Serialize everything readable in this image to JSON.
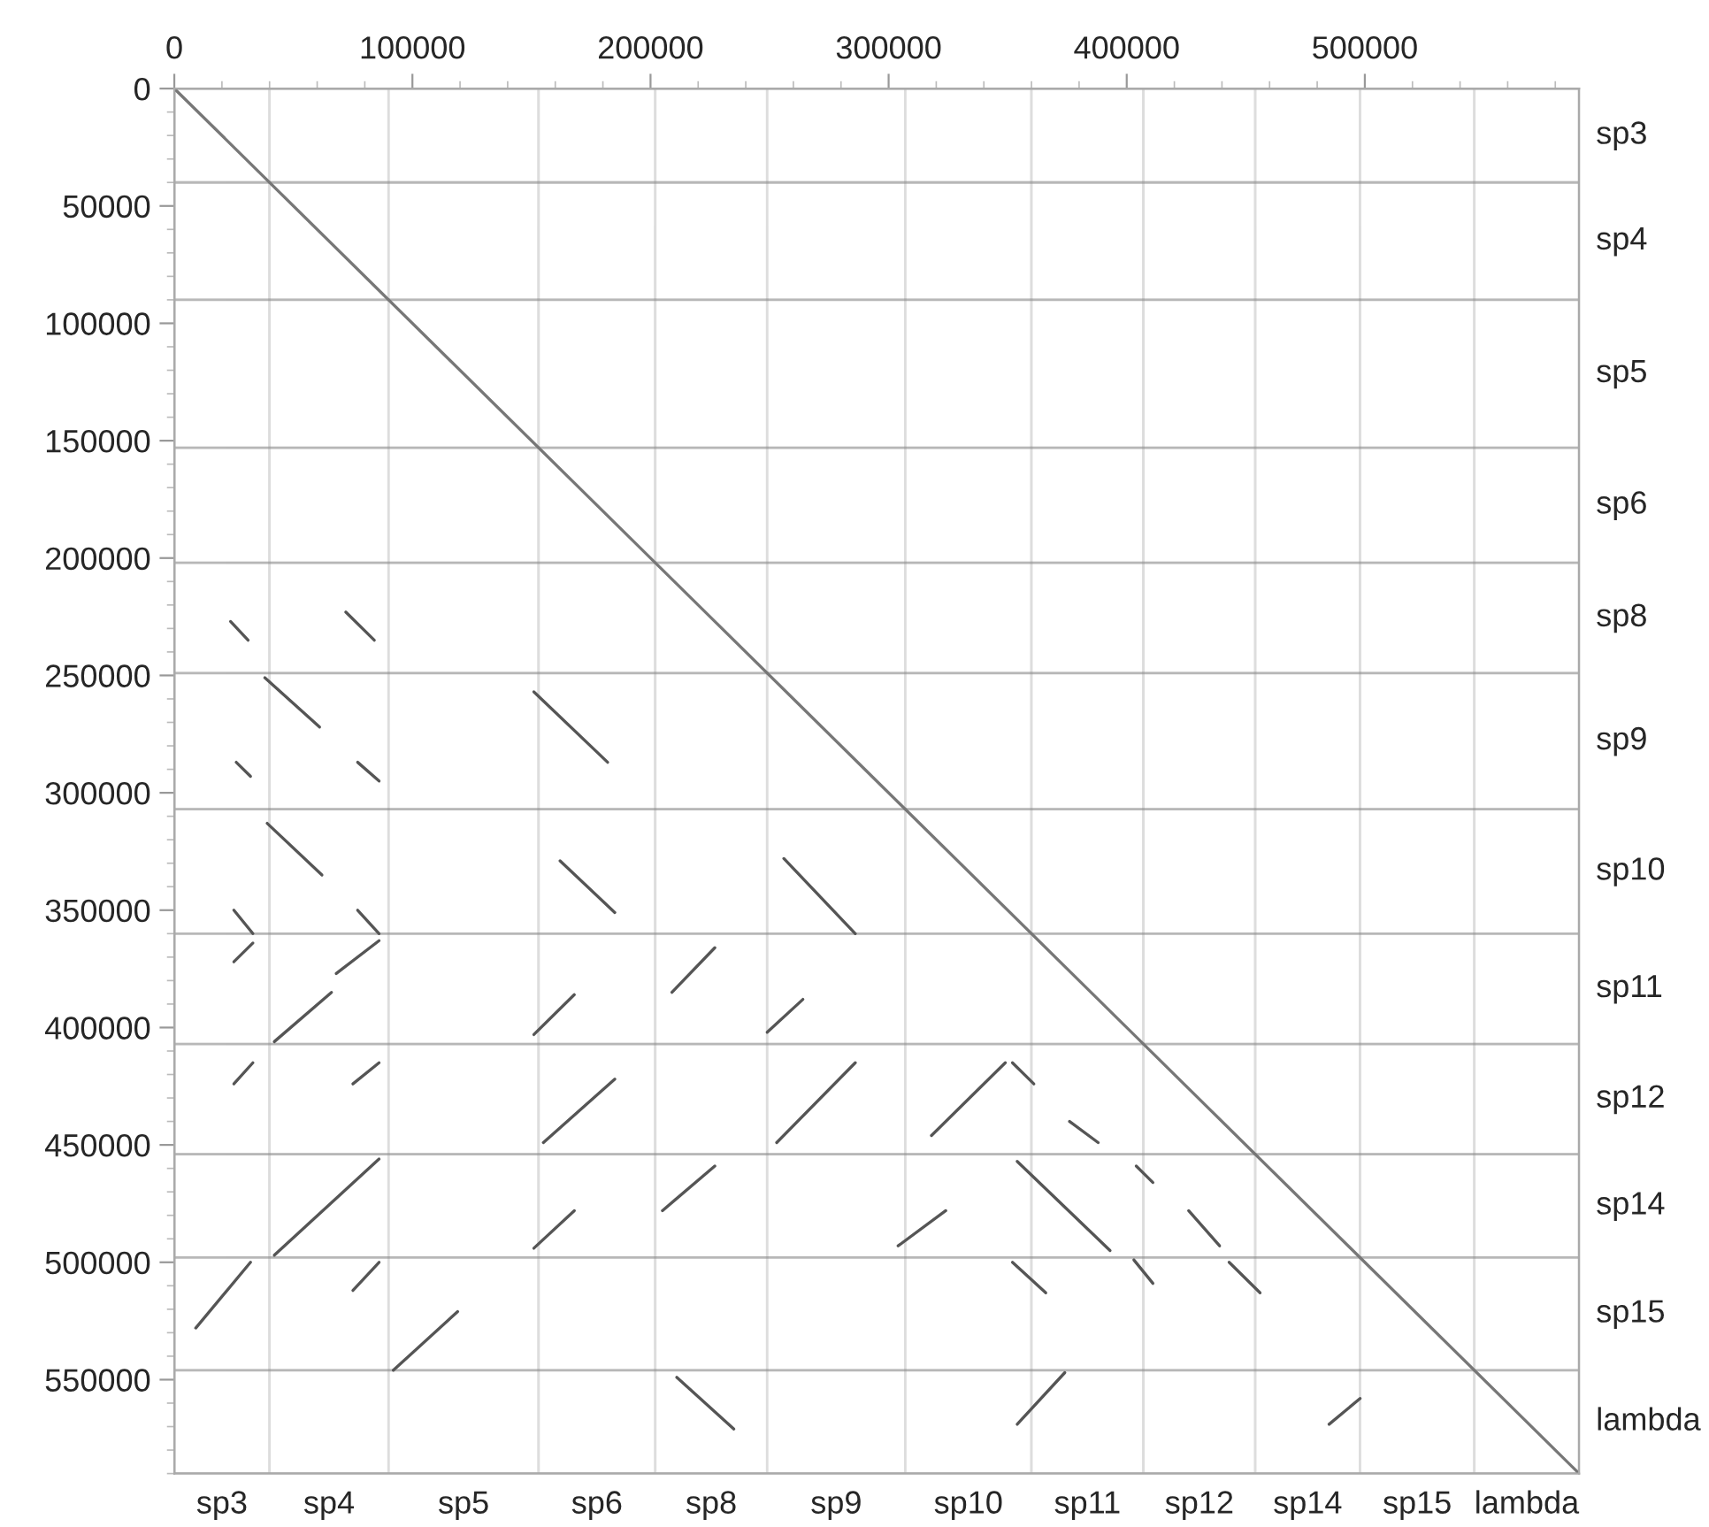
{
  "chart_data": {
    "type": "line",
    "xlim": [
      0,
      590000
    ],
    "ylim": [
      590000,
      0
    ],
    "xticks": [
      0,
      100000,
      200000,
      300000,
      400000,
      500000
    ],
    "yticks": [
      0,
      50000,
      100000,
      150000,
      200000,
      250000,
      300000,
      350000,
      400000,
      450000,
      500000,
      550000
    ],
    "bands": [
      {
        "axis": "x",
        "from": 0,
        "to": 40000,
        "label": "sp3",
        "color": "#aaaaaa"
      },
      {
        "axis": "x",
        "from": 40000,
        "to": 90000,
        "label": "sp4",
        "color": "#aaaaaa"
      },
      {
        "axis": "x",
        "from": 90000,
        "to": 153000,
        "label": "sp5",
        "color": "#aaaaaa"
      },
      {
        "axis": "x",
        "from": 153000,
        "to": 202000,
        "label": "sp6",
        "color": "#aaaaaa"
      },
      {
        "axis": "x",
        "from": 202000,
        "to": 249000,
        "label": "sp8",
        "color": "#aaaaaa"
      },
      {
        "axis": "x",
        "from": 249000,
        "to": 307000,
        "label": "sp9",
        "color": "#aaaaaa"
      },
      {
        "axis": "x",
        "from": 307000,
        "to": 360000,
        "label": "sp10",
        "color": "#aaaaaa"
      },
      {
        "axis": "x",
        "from": 360000,
        "to": 407000,
        "label": "sp11",
        "color": "#aaaaaa"
      },
      {
        "axis": "x",
        "from": 407000,
        "to": 454000,
        "label": "sp12",
        "color": "#aaaaaa"
      },
      {
        "axis": "x",
        "from": 454000,
        "to": 498000,
        "label": "sp14",
        "color": "#aaaaaa"
      },
      {
        "axis": "x",
        "from": 498000,
        "to": 546000,
        "label": "sp15",
        "color": "#aaaaaa"
      },
      {
        "axis": "x",
        "from": 546000,
        "to": 590000,
        "label": "lambda",
        "color": "#aaaaaa"
      },
      {
        "axis": "y",
        "from": 0,
        "to": 40000,
        "label": "sp3",
        "color": "#aaaaaa"
      },
      {
        "axis": "y",
        "from": 40000,
        "to": 90000,
        "label": "sp4",
        "color": "#aaaaaa"
      },
      {
        "axis": "y",
        "from": 90000,
        "to": 153000,
        "label": "sp5",
        "color": "#aaaaaa"
      },
      {
        "axis": "y",
        "from": 153000,
        "to": 202000,
        "label": "sp6",
        "color": "#aaaaaa"
      },
      {
        "axis": "y",
        "from": 202000,
        "to": 249000,
        "label": "sp8",
        "color": "#aaaaaa"
      },
      {
        "axis": "y",
        "from": 249000,
        "to": 307000,
        "label": "sp9",
        "color": "#aaaaaa"
      },
      {
        "axis": "y",
        "from": 307000,
        "to": 360000,
        "label": "sp10",
        "color": "#aaaaaa"
      },
      {
        "axis": "y",
        "from": 360000,
        "to": 407000,
        "label": "sp11",
        "color": "#aaaaaa"
      },
      {
        "axis": "y",
        "from": 407000,
        "to": 454000,
        "label": "sp12",
        "color": "#aaaaaa"
      },
      {
        "axis": "y",
        "from": 454000,
        "to": 498000,
        "label": "sp14",
        "color": "#aaaaaa"
      },
      {
        "axis": "y",
        "from": 498000,
        "to": 546000,
        "label": "sp15",
        "color": "#aaaaaa"
      },
      {
        "axis": "y",
        "from": 546000,
        "to": 590000,
        "label": "lambda",
        "color": "#aaaaaa"
      }
    ],
    "series": [
      {
        "color": "#777777",
        "x": [
          0,
          590000
        ],
        "values": [
          0,
          590000
        ]
      },
      {
        "color": "#555555",
        "x": [
          23600,
          31000
        ],
        "values": [
          227000,
          235000
        ]
      },
      {
        "color": "#555555",
        "x": [
          72000,
          84000
        ],
        "values": [
          223000,
          235000
        ]
      },
      {
        "color": "#555555",
        "x": [
          38000,
          61000
        ],
        "values": [
          251000,
          272000
        ]
      },
      {
        "color": "#555555",
        "x": [
          26000,
          32000
        ],
        "values": [
          287000,
          293000
        ]
      },
      {
        "color": "#555555",
        "x": [
          77000,
          86000
        ],
        "values": [
          287000,
          295000
        ]
      },
      {
        "color": "#555555",
        "x": [
          151000,
          182000
        ],
        "values": [
          257000,
          287000
        ]
      },
      {
        "color": "#555555",
        "x": [
          39000,
          62000
        ],
        "values": [
          313000,
          335000
        ]
      },
      {
        "color": "#555555",
        "x": [
          162000,
          185000
        ],
        "values": [
          329000,
          351000
        ]
      },
      {
        "color": "#555555",
        "x": [
          256000,
          286000
        ],
        "values": [
          328000,
          360000
        ]
      },
      {
        "color": "#555555",
        "x": [
          25000,
          33000
        ],
        "values": [
          350000,
          360000
        ]
      },
      {
        "color": "#555555",
        "x": [
          77000,
          86000
        ],
        "values": [
          350000,
          360000
        ]
      },
      {
        "color": "#555555",
        "x": [
          68000,
          86000
        ],
        "values": [
          377000,
          363000
        ]
      },
      {
        "color": "#555555",
        "x": [
          42000,
          66000
        ],
        "values": [
          406000,
          385000
        ]
      },
      {
        "color": "#555555",
        "x": [
          25000,
          33000
        ],
        "values": [
          372000,
          364000
        ]
      },
      {
        "color": "#555555",
        "x": [
          151000,
          168000
        ],
        "values": [
          403000,
          386000
        ]
      },
      {
        "color": "#555555",
        "x": [
          209000,
          227000
        ],
        "values": [
          385000,
          366000
        ]
      },
      {
        "color": "#555555",
        "x": [
          249000,
          264000
        ],
        "values": [
          402000,
          388000
        ]
      },
      {
        "color": "#555555",
        "x": [
          155000,
          185000
        ],
        "values": [
          449000,
          422000
        ]
      },
      {
        "color": "#555555",
        "x": [
          253000,
          286000
        ],
        "values": [
          449000,
          415000
        ]
      },
      {
        "color": "#555555",
        "x": [
          42000,
          86000
        ],
        "values": [
          497000,
          456000
        ]
      },
      {
        "color": "#555555",
        "x": [
          75000,
          86000
        ],
        "values": [
          424000,
          415000
        ]
      },
      {
        "color": "#555555",
        "x": [
          25000,
          33000
        ],
        "values": [
          424000,
          415000
        ]
      },
      {
        "color": "#555555",
        "x": [
          75000,
          86000
        ],
        "values": [
          512000,
          500000
        ]
      },
      {
        "color": "#555555",
        "x": [
          9000,
          32000
        ],
        "values": [
          528000,
          500000
        ]
      },
      {
        "color": "#555555",
        "x": [
          205000,
          227000
        ],
        "values": [
          478000,
          459000
        ]
      },
      {
        "color": "#555555",
        "x": [
          151000,
          168000
        ],
        "values": [
          494000,
          478000
        ]
      },
      {
        "color": "#555555",
        "x": [
          318000,
          349000
        ],
        "values": [
          446000,
          415000
        ]
      },
      {
        "color": "#555555",
        "x": [
          352000,
          361000
        ],
        "values": [
          415000,
          424000
        ]
      },
      {
        "color": "#555555",
        "x": [
          376000,
          388000
        ],
        "values": [
          440000,
          449000
        ]
      },
      {
        "color": "#555555",
        "x": [
          354000,
          393000
        ],
        "values": [
          457000,
          495000
        ]
      },
      {
        "color": "#555555",
        "x": [
          404000,
          411000
        ],
        "values": [
          459000,
          466000
        ]
      },
      {
        "color": "#555555",
        "x": [
          426000,
          439000
        ],
        "values": [
          478000,
          493000
        ]
      },
      {
        "color": "#555555",
        "x": [
          352000,
          366000
        ],
        "values": [
          500000,
          513000
        ]
      },
      {
        "color": "#555555",
        "x": [
          403000,
          411000
        ],
        "values": [
          499000,
          509000
        ]
      },
      {
        "color": "#555555",
        "x": [
          443000,
          456000
        ],
        "values": [
          500000,
          513000
        ]
      },
      {
        "color": "#555555",
        "x": [
          354000,
          374000
        ],
        "values": [
          569000,
          547000
        ]
      },
      {
        "color": "#555555",
        "x": [
          485000,
          498000
        ],
        "values": [
          569000,
          558000
        ]
      },
      {
        "color": "#555555",
        "x": [
          304000,
          324000
        ],
        "values": [
          493000,
          478000
        ]
      },
      {
        "color": "#555555",
        "x": [
          211000,
          235000
        ],
        "values": [
          549000,
          571000
        ]
      },
      {
        "color": "#555555",
        "x": [
          92000,
          119000
        ],
        "values": [
          546000,
          521000
        ]
      }
    ]
  }
}
